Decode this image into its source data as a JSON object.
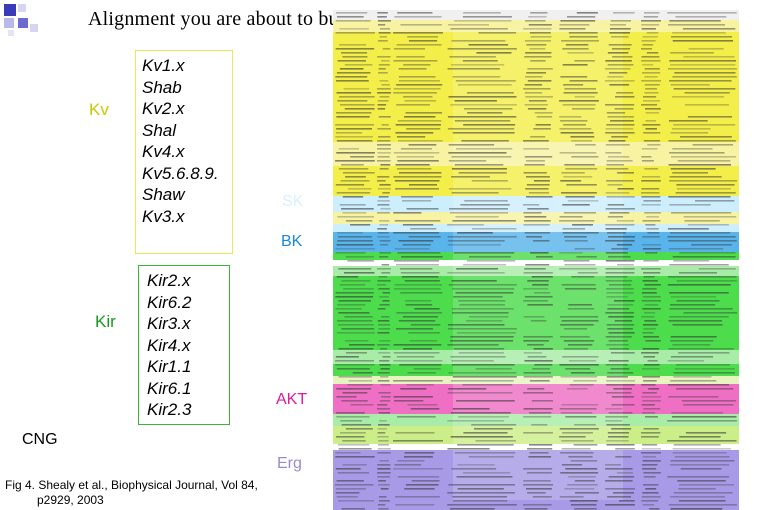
{
  "slide": {
    "title": "Alignment you are about to build, not necessarily as big."
  },
  "kv": {
    "label": "Kv",
    "members": [
      "Kv1.x",
      "Shab",
      "Kv2.x",
      "Shal",
      "Kv4.x",
      "Kv5.6.8.9.",
      "Shaw",
      "Kv3.x"
    ]
  },
  "kir": {
    "label": "Kir",
    "members": [
      "Kir2.x",
      "Kir6.2",
      "Kir3.x",
      "Kir4.x",
      "Kir1.1",
      "Kir6.1",
      "Kir2.3"
    ]
  },
  "families": {
    "cng": "CNG",
    "sk": "SK",
    "bk": "BK",
    "akt": "AKT",
    "erg": "Erg"
  },
  "caption": {
    "line1": "Fig 4. Shealy et al., Biophysical Journal, Vol 84,",
    "line2": "p2929, 2003"
  },
  "colors": {
    "kv": "#f3ee4a",
    "kv_light": "#f7f3a2",
    "sk": "#cdeefd",
    "bk": "#5ab4ec",
    "kir": "#4cdc4c",
    "kir_light": "#a8eca8",
    "akt": "#ee6fc4",
    "cng": "#ccee88",
    "erg": "#a89ae6"
  }
}
